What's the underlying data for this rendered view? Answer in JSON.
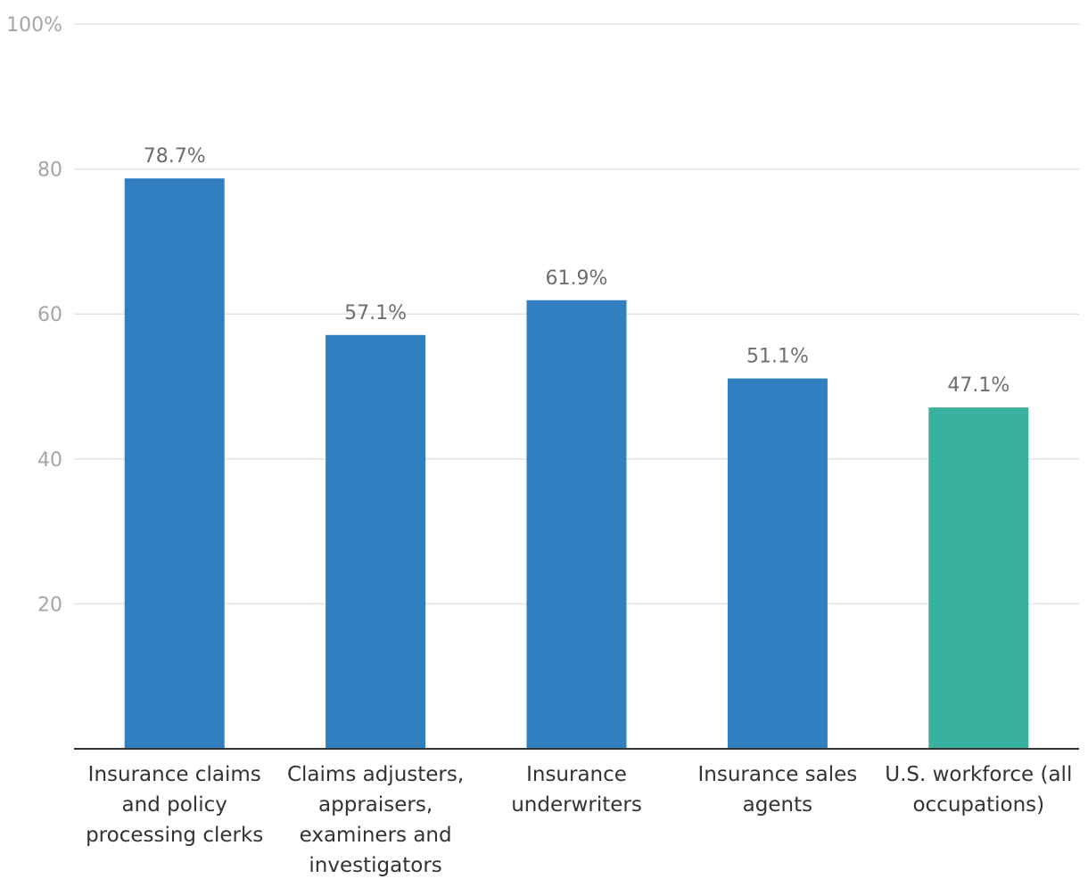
{
  "chart_data": {
    "type": "bar",
    "title": "",
    "xlabel": "",
    "ylabel": "",
    "ylim": [
      0,
      100
    ],
    "yticks": [
      20,
      40,
      60,
      80,
      100
    ],
    "ytick_labels": [
      "20",
      "40",
      "60",
      "80",
      "100%"
    ],
    "categories": [
      [
        "Insurance claims",
        "and policy",
        "processing clerks"
      ],
      [
        "Claims adjusters,",
        "appraisers,",
        "examiners and",
        "investigators"
      ],
      [
        "Insurance",
        "underwriters"
      ],
      [
        "Insurance sales",
        "agents"
      ],
      [
        "U.S. workforce (all",
        "occupations)"
      ]
    ],
    "values": [
      78.7,
      57.1,
      61.9,
      51.1,
      47.1
    ],
    "value_labels": [
      "78.7%",
      "57.1%",
      "61.9%",
      "51.1%",
      "47.1%"
    ],
    "colors": [
      "#317fc0",
      "#317fc0",
      "#317fc0",
      "#317fc0",
      "#38b29e"
    ],
    "grid": true
  }
}
